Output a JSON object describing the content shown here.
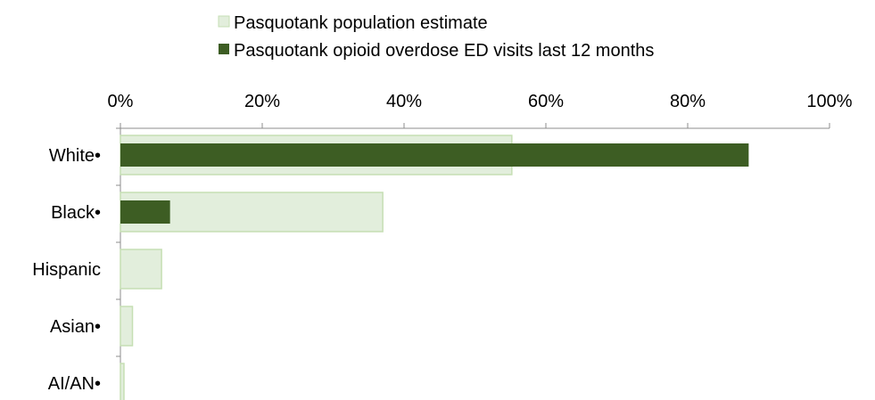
{
  "chart_data": {
    "type": "bar",
    "orientation": "horizontal",
    "categories": [
      "White•",
      "Black•",
      "Hispanic",
      "Asian•",
      "AI/AN•"
    ],
    "series": [
      {
        "name": "Pasquotank population estimate",
        "color": "#e2eedc",
        "border_color": "#c6dfb4",
        "values": [
          55.2,
          37.0,
          5.8,
          1.7,
          0.5
        ]
      },
      {
        "name": "Pasquotank opioid overdose ED visits last 12 months",
        "color": "#3d5d23",
        "values": [
          88.6,
          7.0,
          0,
          0,
          0
        ]
      }
    ],
    "x_ticks": [
      "0%",
      "20%",
      "40%",
      "60%",
      "80%",
      "100%"
    ],
    "xlim": [
      0,
      100
    ],
    "axis_position": "top",
    "legend_position": "top",
    "grid": false
  }
}
